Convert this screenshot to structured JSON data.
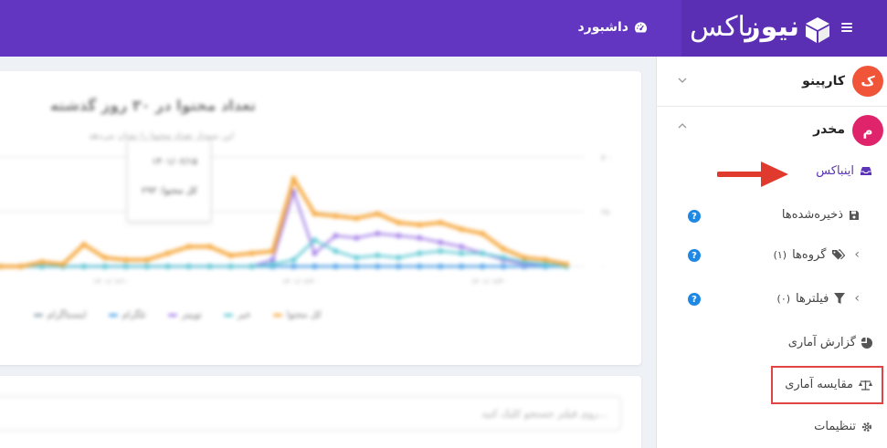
{
  "header": {
    "logo_bold": "نیوز",
    "logo_light": "باکس",
    "page_title": "داشبورد"
  },
  "sidebar": {
    "accounts": [
      {
        "initial": "ک",
        "name": "کارپینو",
        "color": "#f0553a",
        "expanded": false
      },
      {
        "initial": "م",
        "name": "مخدر",
        "color": "#e0246b",
        "expanded": true
      }
    ],
    "items": [
      {
        "label": "اینباکس",
        "icon": "inbox-icon",
        "active": true
      },
      {
        "label": "ذخیره‌شده‌ها",
        "icon": "save-icon",
        "help": "?"
      },
      {
        "label": "گروه‌ها",
        "count": "(۱)",
        "icon": "tags-icon",
        "help": "?"
      },
      {
        "label": "فیلترها",
        "count": "(۰)",
        "icon": "filter-icon",
        "help": "?"
      },
      {
        "label": "گزارش آماری",
        "icon": "pie-chart-icon"
      },
      {
        "label": "مقایسه آماری",
        "icon": "balance-scale-icon",
        "highlighted": true
      },
      {
        "label": "تنظیمات",
        "icon": "gear-icon"
      }
    ]
  },
  "chart_card": {
    "title": "تعداد محتوا در ۳۰ روز گذشته",
    "subtitle": "این نمودار تعداد محتوا را نشان می‌دهد",
    "tooltip_date": "۱۴۰۱/۰۶/۱۵",
    "tooltip_value": "کل محتوا: ۲۹۳",
    "legend": [
      {
        "name": "کل محتوا",
        "color": "#f6a940"
      },
      {
        "name": "خبر",
        "color": "#5ec9d4"
      },
      {
        "name": "توییتر",
        "color": "#a783e8"
      },
      {
        "name": "تلگرام",
        "color": "#4fa3ea"
      },
      {
        "name": "اینستاگرام",
        "color": "#90a4ae"
      }
    ]
  },
  "chart_data": {
    "type": "line",
    "ylim": [
      0,
      1000
    ],
    "yticks": [
      "۵۰۰",
      "۲۵۰",
      "۰"
    ],
    "xticks": [
      "۱۴۰۱/۰۶/۱۰",
      "۱۴۰۱/۰۶/۲۰",
      "۱۴۰۱/۰۶/۳۰"
    ],
    "series": [
      {
        "name": "کل محتوا",
        "color": "#f6a940",
        "values": [
          0,
          0,
          20,
          10,
          100,
          40,
          30,
          30,
          60,
          90,
          90,
          50,
          60,
          70,
          400,
          240,
          230,
          220,
          240,
          200,
          190,
          200,
          170,
          150,
          80,
          40,
          30,
          10
        ]
      },
      {
        "name": "خبر",
        "color": "#5ec9d4",
        "values": [
          0,
          0,
          0,
          0,
          0,
          0,
          0,
          0,
          0,
          0,
          0,
          0,
          0,
          10,
          30,
          120,
          70,
          40,
          50,
          40,
          60,
          70,
          60,
          60,
          40,
          20,
          10,
          0
        ]
      },
      {
        "name": "توییتر",
        "color": "#a783e8",
        "values": [
          0,
          0,
          0,
          0,
          0,
          0,
          0,
          0,
          0,
          0,
          0,
          0,
          0,
          30,
          340,
          60,
          140,
          130,
          150,
          140,
          130,
          110,
          90,
          60,
          30,
          10,
          10,
          0
        ]
      },
      {
        "name": "تلگرام",
        "color": "#4fa3ea",
        "values": [
          0,
          0,
          0,
          0,
          0,
          0,
          0,
          0,
          0,
          0,
          0,
          0,
          0,
          0,
          0,
          0,
          0,
          0,
          0,
          0,
          0,
          0,
          0,
          0,
          0,
          0,
          0,
          0
        ]
      },
      {
        "name": "اینستاگرام",
        "color": "#90a4ae",
        "values": [
          0,
          0,
          0,
          0,
          0,
          0,
          0,
          0,
          0,
          0,
          0,
          0,
          0,
          0,
          0,
          0,
          0,
          0,
          0,
          0,
          0,
          0,
          0,
          0,
          0,
          0,
          0,
          0
        ]
      }
    ]
  },
  "search": {
    "placeholder": "روی فیلتر جستجو کلیک کنید..."
  }
}
